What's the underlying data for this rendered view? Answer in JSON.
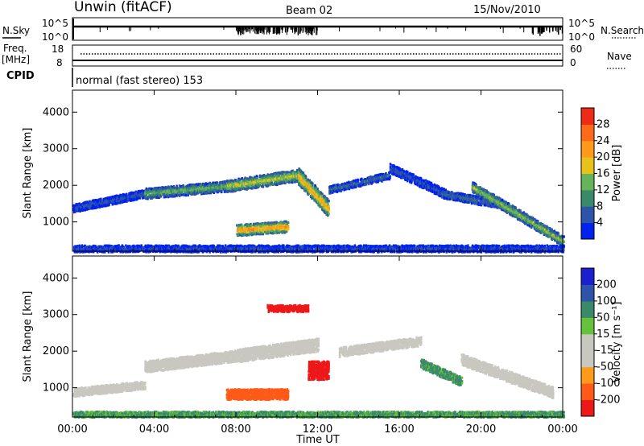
{
  "header": {
    "radar": "Unwin (fitACF)",
    "beam": "Beam 02",
    "date": "15/Nov/2010"
  },
  "top_panels": {
    "nsky": {
      "label": "N.Sky",
      "tick_hi": "10^5",
      "tick_lo": "10^0"
    },
    "nsearch": {
      "label": "N.Search",
      "tick_hi": "10^5",
      "tick_lo": "10^0"
    },
    "freq": {
      "label_line1": "Freq.",
      "label_line2": "[MHz]",
      "tick_hi": "18",
      "tick_lo": "8"
    },
    "nave": {
      "label": "Nave",
      "tick_hi": "60",
      "tick_lo": "0"
    },
    "cpid": {
      "label": "CPID",
      "value": "normal (fast stereo) 153"
    }
  },
  "colors": {
    "power": [
      "#0022ee",
      "#2d54a8",
      "#3a8a6a",
      "#66b35a",
      "#e6c21a",
      "#ff9a1a",
      "#ff6a1a",
      "#ee2a18"
    ],
    "velocity": [
      "#ee1818",
      "#ff5a18",
      "#ff9a1a",
      "#c8c8c0",
      "#c8c8c0",
      "#66c23a",
      "#3a8a6a",
      "#2d54a8",
      "#1a20d0"
    ]
  },
  "chart_data": [
    {
      "type": "heatmap",
      "title": "Power",
      "ylabel": "Slant Range [km]",
      "yticks": [
        "1000",
        "2000",
        "3000",
        "4000"
      ],
      "ylim": [
        200,
        4600
      ],
      "xlim": [
        "00:00",
        "24:00"
      ],
      "colorbar": {
        "label": "Power [dB]",
        "ticks": [
          "4",
          "8",
          "12",
          "16",
          "20",
          "24",
          "28"
        ],
        "range": [
          0,
          32
        ]
      },
      "series": [
        {
          "start": 0,
          "end": 3.5,
          "r0": 1400,
          "r1": 1800,
          "thick": 220,
          "peak": 6
        },
        {
          "start": 3.5,
          "end": 7.5,
          "r0": 1800,
          "r1": 2000,
          "thick": 280,
          "peak": 14
        },
        {
          "start": 7.5,
          "end": 11,
          "r0": 2000,
          "r1": 2300,
          "thick": 320,
          "peak": 18
        },
        {
          "start": 11,
          "end": 12.5,
          "r0": 2300,
          "r1": 1400,
          "thick": 450,
          "peak": 22
        },
        {
          "start": 8,
          "end": 10.5,
          "r0": 800,
          "r1": 900,
          "thick": 300,
          "peak": 24
        },
        {
          "start": 12.5,
          "end": 15.5,
          "r0": 1900,
          "r1": 2300,
          "thick": 200,
          "peak": 8
        },
        {
          "start": 15.5,
          "end": 18.2,
          "r0": 2500,
          "r1": 1800,
          "thick": 250,
          "peak": 6
        },
        {
          "start": 18,
          "end": 21,
          "r0": 1800,
          "r1": 1500,
          "thick": 220,
          "peak": 8
        },
        {
          "start": 19.5,
          "end": 24,
          "r0": 2000,
          "r1": 500,
          "thick": 280,
          "peak": 16
        },
        {
          "start": 0,
          "end": 24,
          "r0": 300,
          "r1": 300,
          "thick": 180,
          "peak": 5
        }
      ]
    },
    {
      "type": "heatmap",
      "title": "Velocity",
      "ylabel": "Slant Range [km]",
      "xlabel": "Time UT",
      "yticks": [
        "1000",
        "2000",
        "3000",
        "4000"
      ],
      "ylim": [
        200,
        4600
      ],
      "xticks": [
        "00:00",
        "04:00",
        "08:00",
        "12:00",
        "16:00",
        "20:00",
        "00:00"
      ],
      "xlim": [
        "00:00",
        "24:00"
      ],
      "colorbar": {
        "label": "Velocity [m s⁻¹]",
        "ticks": [
          "-200",
          "-100",
          "-50",
          "-15",
          "15",
          "50",
          "100",
          "200"
        ],
        "range": [
          -250,
          250
        ]
      },
      "series": [
        {
          "start": 0,
          "end": 3.5,
          "r0": 900,
          "r1": 1100,
          "thick": 220,
          "vel": 0
        },
        {
          "start": 3.5,
          "end": 8,
          "r0": 1600,
          "r1": 1900,
          "thick": 300,
          "vel": 0
        },
        {
          "start": 8,
          "end": 12,
          "r0": 1900,
          "r1": 2200,
          "thick": 350,
          "vel": -10
        },
        {
          "start": 11.5,
          "end": 12.5,
          "r0": 1500,
          "r1": 1500,
          "thick": 500,
          "vel": -220
        },
        {
          "start": 7.5,
          "end": 10.5,
          "r0": 850,
          "r1": 850,
          "thick": 280,
          "vel": -150
        },
        {
          "start": 9.5,
          "end": 11.5,
          "r0": 3200,
          "r1": 3200,
          "thick": 180,
          "vel": -230
        },
        {
          "start": 13,
          "end": 17,
          "r0": 2000,
          "r1": 2300,
          "thick": 250,
          "vel": 0
        },
        {
          "start": 17,
          "end": 19,
          "r0": 1700,
          "r1": 1200,
          "thick": 250,
          "vel": 60
        },
        {
          "start": 19,
          "end": 23.5,
          "r0": 1800,
          "r1": 900,
          "thick": 300,
          "vel": 0
        },
        {
          "start": 0,
          "end": 24,
          "r0": 300,
          "r1": 300,
          "thick": 150,
          "vel": 55
        }
      ]
    }
  ]
}
